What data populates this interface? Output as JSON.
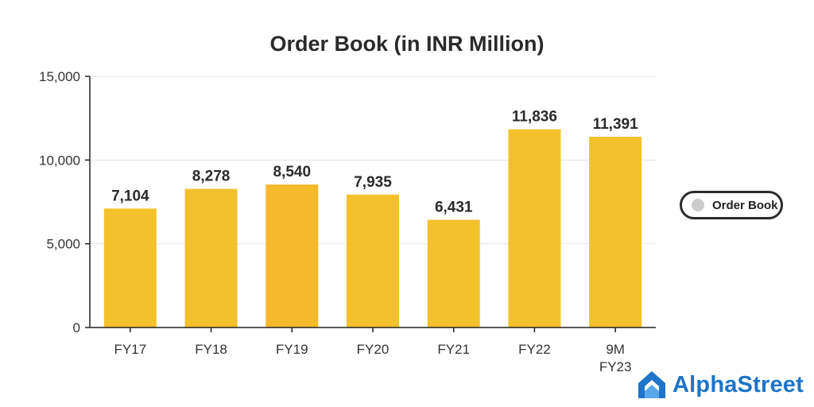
{
  "chart_data": {
    "type": "bar",
    "title": "Order Book (in INR Million)",
    "categories": [
      "FY17",
      "FY18",
      "FY19",
      "FY20",
      "FY21",
      "FY22",
      "9M FY23"
    ],
    "series": [
      {
        "name": "Order Book",
        "values": [
          7104,
          8278,
          8540,
          7935,
          6431,
          11836,
          11391
        ],
        "value_labels": [
          "7,104",
          "8,278",
          "8,540",
          "7,935",
          "6,431",
          "11,836",
          "11,391"
        ]
      }
    ],
    "ylim": [
      0,
      15000
    ],
    "yticks": [
      0,
      5000,
      10000,
      15000
    ],
    "ytick_labels": [
      "0",
      "5,000",
      "10,000",
      "15,000"
    ],
    "xlabel": "",
    "ylabel": "",
    "grid": true,
    "legend_position": "right",
    "colors": {
      "bar": "#f3c12c",
      "bar_highlight": "#f6b92b",
      "legend_swatch": "#cccccc",
      "grid": "#e6e6e6",
      "axis": "#222222"
    }
  },
  "brand": {
    "name": "AlphaStreet",
    "logo_icon": "alphastreet-logo-icon",
    "color": "#1d74c9"
  }
}
